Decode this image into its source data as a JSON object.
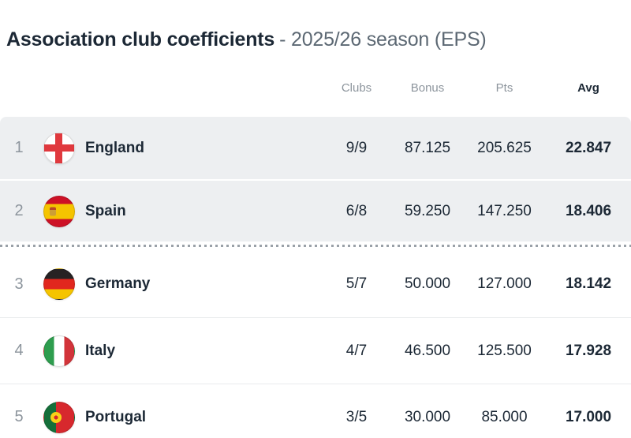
{
  "title": {
    "main": "Association club coefficients",
    "sub": "- 2025/26 season (EPS)"
  },
  "table": {
    "headers": {
      "clubs": "Clubs",
      "bonus": "Bonus",
      "pts": "Pts",
      "avg": "Avg"
    },
    "sorted_by": "avg",
    "cutoff_after_rank": 2,
    "rows": [
      {
        "rank": "1",
        "country": "England",
        "flag": "england-flag",
        "clubs": "9/9",
        "bonus": "87.125",
        "pts": "205.625",
        "avg": "22.847",
        "highlighted": true
      },
      {
        "rank": "2",
        "country": "Spain",
        "flag": "spain-flag",
        "clubs": "6/8",
        "bonus": "59.250",
        "pts": "147.250",
        "avg": "18.406",
        "highlighted": true
      },
      {
        "rank": "3",
        "country": "Germany",
        "flag": "germany-flag",
        "clubs": "5/7",
        "bonus": "50.000",
        "pts": "127.000",
        "avg": "18.142",
        "highlighted": false
      },
      {
        "rank": "4",
        "country": "Italy",
        "flag": "italy-flag",
        "clubs": "4/7",
        "bonus": "46.500",
        "pts": "125.500",
        "avg": "17.928",
        "highlighted": false
      },
      {
        "rank": "5",
        "country": "Portugal",
        "flag": "portugal-flag",
        "clubs": "3/5",
        "bonus": "30.000",
        "pts": "85.000",
        "avg": "17.000",
        "highlighted": false
      }
    ]
  },
  "colors": {
    "text_dark": "#1c2835",
    "title_sub": "#5c6873",
    "text_gray": "#8d959d",
    "row_highlight": "#edeff1",
    "divider": "#e9ebed",
    "dotted": "#9aa1a8",
    "england_red": "#e0393e",
    "spain_red": "#cd1126",
    "spain_yellow": "#f5c400",
    "germany_black": "#262223",
    "germany_red": "#e1271e",
    "germany_gold": "#f5c400",
    "italy_green": "#2e9d4e",
    "italy_red": "#d2343a",
    "portugal_green": "#156f3a",
    "portugal_red": "#d7282d",
    "portugal_emblem": "#f9d117"
  }
}
